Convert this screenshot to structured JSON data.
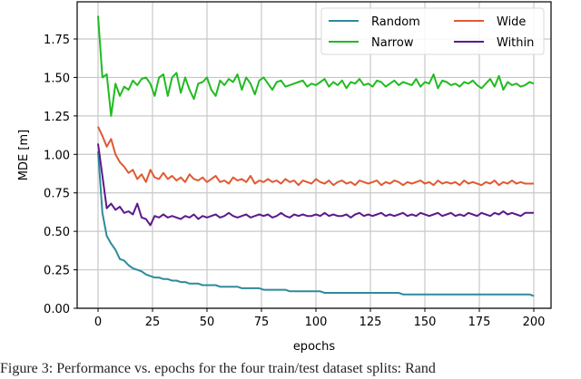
{
  "caption": "Figure 3: Performance vs. epochs for the four train/test dataset splits: Rand",
  "chart_data": {
    "type": "line",
    "title": "",
    "xlabel": "epochs",
    "ylabel": "MDE [m]",
    "xlim": [
      -8,
      208
    ],
    "ylim": [
      -0.02,
      1.97
    ],
    "xticks": [
      0,
      25,
      50,
      75,
      100,
      125,
      150,
      175,
      200
    ],
    "xtick_labels": [
      "0",
      "25",
      "50",
      "75",
      "100",
      "125",
      "150",
      "175",
      "200"
    ],
    "yticks": [
      0.0,
      0.25,
      0.5,
      0.75,
      1.0,
      1.25,
      1.5,
      1.75
    ],
    "ytick_labels": [
      "0.00",
      "0.25",
      "0.50",
      "0.75",
      "1.00",
      "1.25",
      "1.50",
      "1.75"
    ],
    "grid": true,
    "legend_position": "upper right",
    "legend_columns": 2,
    "x_step": 2,
    "series": [
      {
        "name": "Random",
        "color": "#2e8b9a",
        "values": [
          1.02,
          0.62,
          0.47,
          0.42,
          0.38,
          0.32,
          0.31,
          0.28,
          0.26,
          0.25,
          0.24,
          0.22,
          0.21,
          0.2,
          0.2,
          0.19,
          0.19,
          0.18,
          0.18,
          0.17,
          0.17,
          0.16,
          0.16,
          0.16,
          0.15,
          0.15,
          0.15,
          0.15,
          0.14,
          0.14,
          0.14,
          0.14,
          0.14,
          0.13,
          0.13,
          0.13,
          0.13,
          0.13,
          0.12,
          0.12,
          0.12,
          0.12,
          0.12,
          0.12,
          0.11,
          0.11,
          0.11,
          0.11,
          0.11,
          0.11,
          0.11,
          0.11,
          0.1,
          0.1,
          0.1,
          0.1,
          0.1,
          0.1,
          0.1,
          0.1,
          0.1,
          0.1,
          0.1,
          0.1,
          0.1,
          0.1,
          0.1,
          0.1,
          0.1,
          0.1,
          0.09,
          0.09,
          0.09,
          0.09,
          0.09,
          0.09,
          0.09,
          0.09,
          0.09,
          0.09,
          0.09,
          0.09,
          0.09,
          0.09,
          0.09,
          0.09,
          0.09,
          0.09,
          0.09,
          0.09,
          0.09,
          0.09,
          0.09,
          0.09,
          0.09,
          0.09,
          0.09,
          0.09,
          0.09,
          0.09,
          0.08
        ]
      },
      {
        "name": "Narrow",
        "color": "#21bb21",
        "values": [
          1.9,
          1.5,
          1.52,
          1.25,
          1.46,
          1.38,
          1.44,
          1.42,
          1.48,
          1.45,
          1.49,
          1.5,
          1.46,
          1.38,
          1.5,
          1.52,
          1.38,
          1.5,
          1.53,
          1.4,
          1.5,
          1.42,
          1.36,
          1.46,
          1.47,
          1.5,
          1.42,
          1.38,
          1.48,
          1.45,
          1.49,
          1.47,
          1.52,
          1.42,
          1.5,
          1.46,
          1.39,
          1.48,
          1.5,
          1.46,
          1.42,
          1.47,
          1.48,
          1.44,
          1.45,
          1.46,
          1.47,
          1.48,
          1.44,
          1.46,
          1.45,
          1.47,
          1.49,
          1.44,
          1.47,
          1.45,
          1.48,
          1.43,
          1.47,
          1.46,
          1.49,
          1.45,
          1.46,
          1.44,
          1.48,
          1.47,
          1.44,
          1.46,
          1.48,
          1.45,
          1.47,
          1.46,
          1.45,
          1.49,
          1.44,
          1.47,
          1.46,
          1.52,
          1.43,
          1.48,
          1.47,
          1.45,
          1.46,
          1.44,
          1.47,
          1.46,
          1.48,
          1.45,
          1.43,
          1.46,
          1.49,
          1.44,
          1.51,
          1.42,
          1.47,
          1.45,
          1.46,
          1.44,
          1.45,
          1.47,
          1.46
        ]
      },
      {
        "name": "Wide",
        "color": "#e05a33",
        "values": [
          1.18,
          1.12,
          1.05,
          1.1,
          1.0,
          0.95,
          0.92,
          0.88,
          0.9,
          0.84,
          0.87,
          0.82,
          0.9,
          0.85,
          0.84,
          0.88,
          0.84,
          0.86,
          0.83,
          0.85,
          0.82,
          0.87,
          0.84,
          0.83,
          0.85,
          0.82,
          0.84,
          0.86,
          0.82,
          0.83,
          0.81,
          0.85,
          0.83,
          0.84,
          0.82,
          0.86,
          0.81,
          0.83,
          0.82,
          0.84,
          0.82,
          0.83,
          0.81,
          0.84,
          0.82,
          0.83,
          0.8,
          0.83,
          0.82,
          0.81,
          0.84,
          0.82,
          0.81,
          0.83,
          0.8,
          0.82,
          0.83,
          0.81,
          0.82,
          0.8,
          0.83,
          0.82,
          0.81,
          0.82,
          0.83,
          0.8,
          0.82,
          0.81,
          0.83,
          0.82,
          0.8,
          0.82,
          0.81,
          0.82,
          0.83,
          0.81,
          0.82,
          0.8,
          0.83,
          0.81,
          0.82,
          0.81,
          0.82,
          0.8,
          0.83,
          0.81,
          0.82,
          0.81,
          0.8,
          0.82,
          0.81,
          0.83,
          0.8,
          0.82,
          0.81,
          0.83,
          0.81,
          0.82,
          0.81,
          0.81,
          0.81
        ]
      },
      {
        "name": "Within",
        "color": "#5c1a8c",
        "values": [
          1.07,
          0.86,
          0.65,
          0.68,
          0.64,
          0.66,
          0.62,
          0.63,
          0.61,
          0.68,
          0.59,
          0.58,
          0.54,
          0.6,
          0.59,
          0.61,
          0.59,
          0.6,
          0.59,
          0.58,
          0.6,
          0.59,
          0.61,
          0.58,
          0.6,
          0.59,
          0.6,
          0.61,
          0.59,
          0.6,
          0.62,
          0.6,
          0.59,
          0.6,
          0.61,
          0.59,
          0.6,
          0.61,
          0.6,
          0.61,
          0.59,
          0.6,
          0.62,
          0.6,
          0.59,
          0.61,
          0.6,
          0.61,
          0.6,
          0.6,
          0.61,
          0.6,
          0.62,
          0.6,
          0.61,
          0.6,
          0.6,
          0.61,
          0.59,
          0.61,
          0.62,
          0.6,
          0.61,
          0.6,
          0.61,
          0.62,
          0.6,
          0.61,
          0.6,
          0.61,
          0.62,
          0.6,
          0.61,
          0.6,
          0.62,
          0.61,
          0.6,
          0.61,
          0.62,
          0.6,
          0.61,
          0.62,
          0.6,
          0.61,
          0.6,
          0.62,
          0.61,
          0.6,
          0.62,
          0.61,
          0.6,
          0.62,
          0.61,
          0.63,
          0.61,
          0.62,
          0.61,
          0.6,
          0.62,
          0.62,
          0.62
        ]
      }
    ]
  }
}
